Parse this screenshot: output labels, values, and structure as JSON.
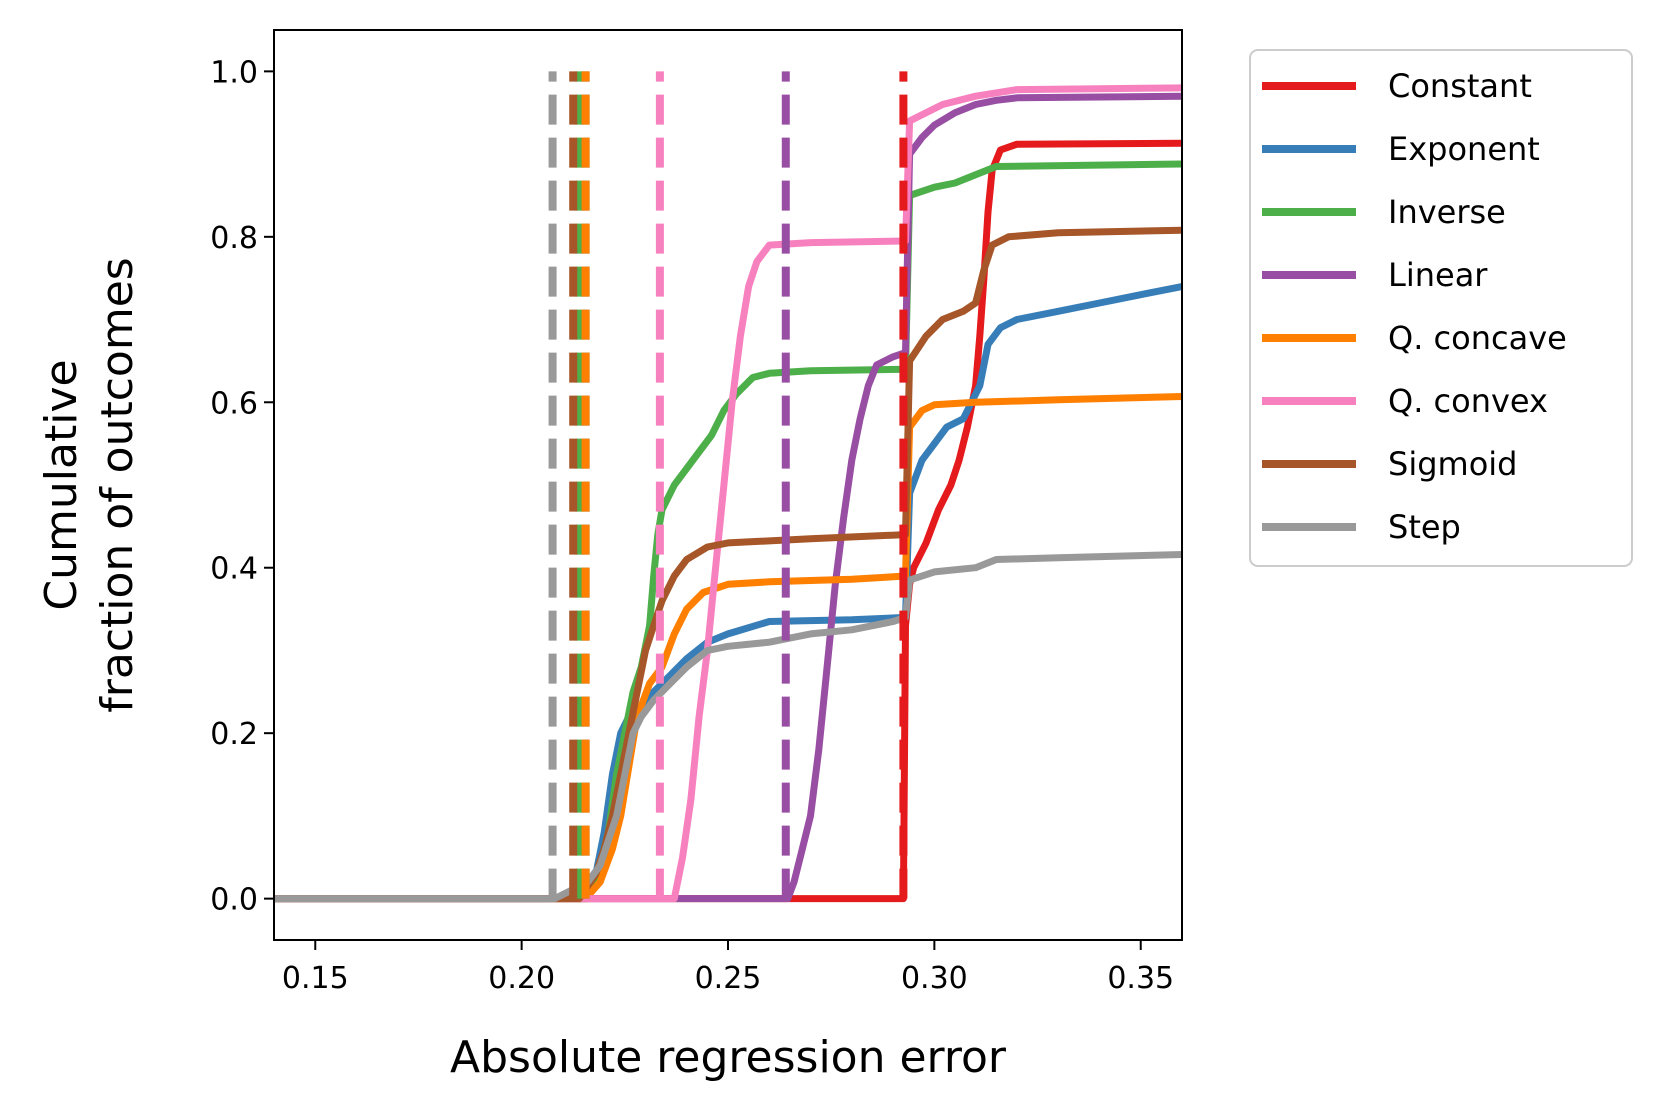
{
  "chart_data": {
    "type": "line",
    "title": "",
    "xlabel": "Absolute regression error",
    "ylabel_lines": [
      "Cumulative",
      "fraction of outcomes"
    ],
    "xlim": [
      0.14,
      0.36
    ],
    "ylim": [
      -0.05,
      1.05
    ],
    "x_ticks": [
      0.15,
      0.2,
      0.25,
      0.3,
      0.35
    ],
    "x_tick_labels": [
      "0.15",
      "0.20",
      "0.25",
      "0.30",
      "0.35"
    ],
    "y_ticks": [
      0.0,
      0.2,
      0.4,
      0.6,
      0.8,
      1.0
    ],
    "y_tick_labels": [
      "0.0",
      "0.2",
      "0.4",
      "0.6",
      "0.8",
      "1.0"
    ],
    "grid": false,
    "legend_position": "outside-right",
    "series": [
      {
        "name": "Constant",
        "color": "#e41a1c",
        "dash_x": 0.2925,
        "points": [
          [
            0.14,
            0
          ],
          [
            0.2925,
            0
          ],
          [
            0.293,
            0.33
          ],
          [
            0.294,
            0.38
          ],
          [
            0.295,
            0.4
          ],
          [
            0.298,
            0.43
          ],
          [
            0.301,
            0.47
          ],
          [
            0.304,
            0.5
          ],
          [
            0.306,
            0.53
          ],
          [
            0.308,
            0.57
          ],
          [
            0.31,
            0.62
          ],
          [
            0.311,
            0.68
          ],
          [
            0.312,
            0.75
          ],
          [
            0.313,
            0.83
          ],
          [
            0.314,
            0.88
          ],
          [
            0.316,
            0.905
          ],
          [
            0.32,
            0.912
          ],
          [
            0.36,
            0.913
          ]
        ]
      },
      {
        "name": "Exponent",
        "color": "#377eb8",
        "dash_x": 0.2155,
        "points": [
          [
            0.14,
            0
          ],
          [
            0.2155,
            0
          ],
          [
            0.218,
            0.03
          ],
          [
            0.22,
            0.08
          ],
          [
            0.222,
            0.15
          ],
          [
            0.224,
            0.2
          ],
          [
            0.226,
            0.22
          ],
          [
            0.229,
            0.23
          ],
          [
            0.232,
            0.25
          ],
          [
            0.236,
            0.27
          ],
          [
            0.24,
            0.29
          ],
          [
            0.245,
            0.31
          ],
          [
            0.25,
            0.32
          ],
          [
            0.26,
            0.335
          ],
          [
            0.28,
            0.337
          ],
          [
            0.293,
            0.34
          ],
          [
            0.294,
            0.49
          ],
          [
            0.297,
            0.53
          ],
          [
            0.3,
            0.55
          ],
          [
            0.303,
            0.57
          ],
          [
            0.307,
            0.58
          ],
          [
            0.309,
            0.6
          ],
          [
            0.311,
            0.62
          ],
          [
            0.313,
            0.67
          ],
          [
            0.316,
            0.69
          ],
          [
            0.32,
            0.7
          ],
          [
            0.33,
            0.71
          ],
          [
            0.34,
            0.72
          ],
          [
            0.35,
            0.73
          ],
          [
            0.36,
            0.74
          ]
        ]
      },
      {
        "name": "Inverse",
        "color": "#4daf4a",
        "dash_x": 0.214,
        "points": [
          [
            0.14,
            0
          ],
          [
            0.2155,
            0
          ],
          [
            0.218,
            0.02
          ],
          [
            0.221,
            0.08
          ],
          [
            0.223,
            0.15
          ],
          [
            0.225,
            0.2
          ],
          [
            0.227,
            0.25
          ],
          [
            0.229,
            0.28
          ],
          [
            0.231,
            0.33
          ],
          [
            0.232,
            0.39
          ],
          [
            0.233,
            0.44
          ],
          [
            0.234,
            0.47
          ],
          [
            0.237,
            0.5
          ],
          [
            0.24,
            0.52
          ],
          [
            0.243,
            0.54
          ],
          [
            0.246,
            0.56
          ],
          [
            0.249,
            0.59
          ],
          [
            0.252,
            0.61
          ],
          [
            0.256,
            0.63
          ],
          [
            0.26,
            0.635
          ],
          [
            0.27,
            0.638
          ],
          [
            0.293,
            0.64
          ],
          [
            0.294,
            0.85
          ],
          [
            0.3,
            0.86
          ],
          [
            0.305,
            0.865
          ],
          [
            0.31,
            0.875
          ],
          [
            0.315,
            0.885
          ],
          [
            0.36,
            0.888
          ]
        ]
      },
      {
        "name": "Linear",
        "color": "#984ea3",
        "dash_x": 0.264,
        "points": [
          [
            0.14,
            0
          ],
          [
            0.2645,
            0
          ],
          [
            0.266,
            0.02
          ],
          [
            0.268,
            0.06
          ],
          [
            0.27,
            0.1
          ],
          [
            0.272,
            0.18
          ],
          [
            0.274,
            0.28
          ],
          [
            0.276,
            0.38
          ],
          [
            0.278,
            0.46
          ],
          [
            0.28,
            0.53
          ],
          [
            0.282,
            0.58
          ],
          [
            0.284,
            0.62
          ],
          [
            0.286,
            0.645
          ],
          [
            0.29,
            0.655
          ],
          [
            0.293,
            0.66
          ],
          [
            0.294,
            0.9
          ],
          [
            0.297,
            0.92
          ],
          [
            0.3,
            0.935
          ],
          [
            0.305,
            0.95
          ],
          [
            0.31,
            0.96
          ],
          [
            0.315,
            0.965
          ],
          [
            0.32,
            0.968
          ],
          [
            0.36,
            0.97
          ]
        ]
      },
      {
        "name": "Q. concave",
        "color": "#ff7f00",
        "dash_x": 0.2155,
        "points": [
          [
            0.14,
            0
          ],
          [
            0.2155,
            0
          ],
          [
            0.219,
            0.02
          ],
          [
            0.222,
            0.06
          ],
          [
            0.224,
            0.1
          ],
          [
            0.226,
            0.16
          ],
          [
            0.228,
            0.22
          ],
          [
            0.231,
            0.26
          ],
          [
            0.234,
            0.28
          ],
          [
            0.237,
            0.32
          ],
          [
            0.24,
            0.35
          ],
          [
            0.244,
            0.37
          ],
          [
            0.25,
            0.38
          ],
          [
            0.26,
            0.383
          ],
          [
            0.28,
            0.386
          ],
          [
            0.293,
            0.39
          ],
          [
            0.294,
            0.57
          ],
          [
            0.297,
            0.59
          ],
          [
            0.3,
            0.597
          ],
          [
            0.31,
            0.6
          ],
          [
            0.33,
            0.603
          ],
          [
            0.36,
            0.607
          ]
        ]
      },
      {
        "name": "Q. convex",
        "color": "#f781bf",
        "dash_x": 0.2335,
        "points": [
          [
            0.14,
            0
          ],
          [
            0.237,
            0
          ],
          [
            0.239,
            0.05
          ],
          [
            0.241,
            0.12
          ],
          [
            0.243,
            0.22
          ],
          [
            0.245,
            0.3
          ],
          [
            0.247,
            0.4
          ],
          [
            0.249,
            0.5
          ],
          [
            0.251,
            0.6
          ],
          [
            0.253,
            0.68
          ],
          [
            0.255,
            0.74
          ],
          [
            0.257,
            0.77
          ],
          [
            0.26,
            0.79
          ],
          [
            0.27,
            0.793
          ],
          [
            0.293,
            0.795
          ],
          [
            0.294,
            0.94
          ],
          [
            0.298,
            0.95
          ],
          [
            0.302,
            0.96
          ],
          [
            0.31,
            0.97
          ],
          [
            0.32,
            0.978
          ],
          [
            0.36,
            0.98
          ]
        ]
      },
      {
        "name": "Sigmoid",
        "color": "#a65628",
        "dash_x": 0.2125,
        "points": [
          [
            0.14,
            0
          ],
          [
            0.214,
            0
          ],
          [
            0.218,
            0.03
          ],
          [
            0.22,
            0.06
          ],
          [
            0.222,
            0.1
          ],
          [
            0.224,
            0.15
          ],
          [
            0.226,
            0.2
          ],
          [
            0.228,
            0.25
          ],
          [
            0.23,
            0.3
          ],
          [
            0.232,
            0.33
          ],
          [
            0.234,
            0.36
          ],
          [
            0.237,
            0.39
          ],
          [
            0.24,
            0.41
          ],
          [
            0.245,
            0.425
          ],
          [
            0.25,
            0.43
          ],
          [
            0.27,
            0.435
          ],
          [
            0.293,
            0.44
          ],
          [
            0.294,
            0.65
          ],
          [
            0.298,
            0.68
          ],
          [
            0.302,
            0.7
          ],
          [
            0.307,
            0.71
          ],
          [
            0.31,
            0.72
          ],
          [
            0.312,
            0.76
          ],
          [
            0.314,
            0.79
          ],
          [
            0.318,
            0.8
          ],
          [
            0.33,
            0.805
          ],
          [
            0.36,
            0.808
          ]
        ]
      },
      {
        "name": "Step",
        "color": "#999999",
        "dash_x": 0.2075,
        "points": [
          [
            0.14,
            0
          ],
          [
            0.208,
            0
          ],
          [
            0.212,
            0.01
          ],
          [
            0.216,
            0.02
          ],
          [
            0.219,
            0.04
          ],
          [
            0.221,
            0.07
          ],
          [
            0.223,
            0.1
          ],
          [
            0.225,
            0.15
          ],
          [
            0.227,
            0.2
          ],
          [
            0.229,
            0.22
          ],
          [
            0.232,
            0.24
          ],
          [
            0.236,
            0.26
          ],
          [
            0.24,
            0.28
          ],
          [
            0.245,
            0.3
          ],
          [
            0.25,
            0.305
          ],
          [
            0.26,
            0.31
          ],
          [
            0.27,
            0.32
          ],
          [
            0.28,
            0.325
          ],
          [
            0.29,
            0.335
          ],
          [
            0.293,
            0.34
          ],
          [
            0.294,
            0.385
          ],
          [
            0.3,
            0.395
          ],
          [
            0.31,
            0.4
          ],
          [
            0.315,
            0.41
          ],
          [
            0.33,
            0.412
          ],
          [
            0.36,
            0.416
          ]
        ]
      }
    ]
  }
}
